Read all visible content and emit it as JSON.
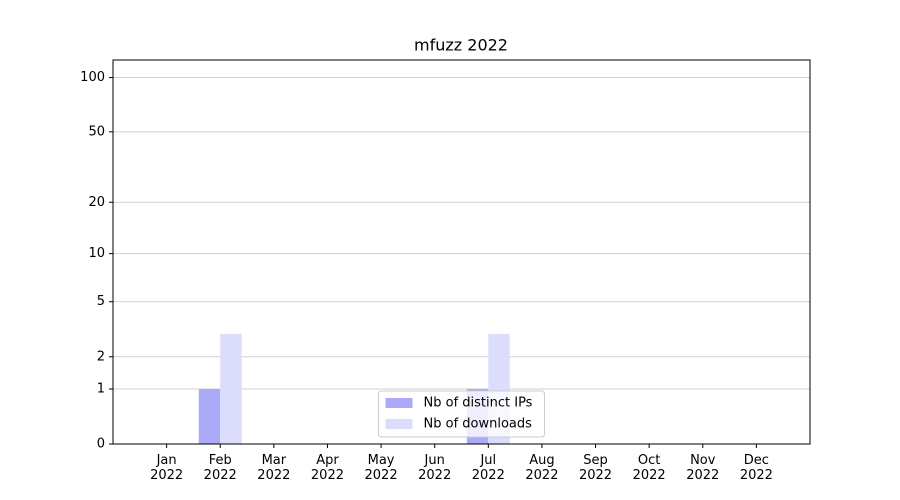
{
  "chart_data": {
    "type": "bar",
    "title": "mfuzz 2022",
    "categories": [
      "Jan 2022",
      "Feb 2022",
      "Mar 2022",
      "Apr 2022",
      "May 2022",
      "Jun 2022",
      "Jul 2022",
      "Aug 2022",
      "Sep 2022",
      "Oct 2022",
      "Nov 2022",
      "Dec 2022"
    ],
    "series": [
      {
        "name": "Nb of distinct IPs",
        "color": "#aaaaf8",
        "values": [
          0,
          1,
          0,
          0,
          0,
          0,
          1,
          0,
          0,
          0,
          0,
          0
        ]
      },
      {
        "name": "Nb of downloads",
        "color": "#dcdcfc",
        "values": [
          0,
          3,
          0,
          0,
          0,
          0,
          3,
          0,
          0,
          0,
          0,
          0
        ]
      }
    ],
    "yscale": "symlog",
    "ylim": [
      0,
      125
    ],
    "yticks": [
      0,
      1,
      2,
      5,
      10,
      20,
      50,
      100
    ],
    "grid": true,
    "legend": "lower center"
  }
}
